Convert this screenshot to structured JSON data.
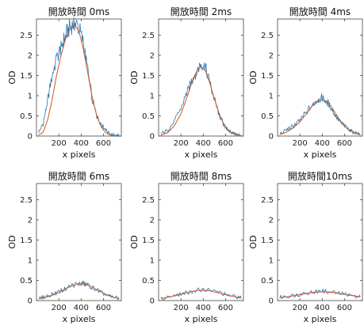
{
  "chart_data": [
    {
      "type": "line",
      "title": "開放時間 0ms",
      "xlabel": "x pixels",
      "ylabel": "OD",
      "xlim": [
        0,
        760
      ],
      "ylim": [
        0,
        2.9
      ],
      "xticks": [
        200,
        400,
        600
      ],
      "yticks": [
        0,
        0.5,
        1,
        1.5,
        2,
        2.5
      ],
      "series": [
        {
          "values": [
            [
              20,
              0.1
            ],
            [
              60,
              0.3
            ],
            [
              100,
              0.9
            ],
            [
              140,
              1.5
            ],
            [
              180,
              1.9
            ],
            [
              220,
              2.2
            ],
            [
              260,
              2.5
            ],
            [
              300,
              2.7
            ],
            [
              340,
              2.8
            ],
            [
              380,
              2.7
            ],
            [
              420,
              2.3
            ],
            [
              460,
              1.6
            ],
            [
              500,
              0.9
            ],
            [
              540,
              0.5
            ],
            [
              580,
              0.3
            ],
            [
              620,
              0.15
            ],
            [
              660,
              0.05
            ],
            [
              700,
              0.02
            ],
            [
              740,
              0.01
            ]
          ]
        },
        {
          "values": [
            [
              20,
              0.02
            ],
            [
              60,
              0.1
            ],
            [
              100,
              0.4
            ],
            [
              140,
              0.9
            ],
            [
              180,
              1.5
            ],
            [
              220,
              2.0
            ],
            [
              260,
              2.4
            ],
            [
              300,
              2.65
            ],
            [
              340,
              2.75
            ],
            [
              380,
              2.6
            ],
            [
              420,
              2.15
            ],
            [
              460,
              1.55
            ],
            [
              500,
              0.95
            ],
            [
              540,
              0.5
            ],
            [
              580,
              0.22
            ],
            [
              620,
              0.08
            ],
            [
              660,
              0.03
            ],
            [
              700,
              0.01
            ],
            [
              740,
              0.0
            ]
          ]
        }
      ]
    },
    {
      "type": "line",
      "title": "開放時間 2ms",
      "xlabel": "x pixels",
      "ylabel": "OD",
      "xlim": [
        0,
        760
      ],
      "ylim": [
        0,
        2.9
      ],
      "xticks": [
        200,
        400,
        600
      ],
      "yticks": [
        0,
        0.5,
        1,
        1.5,
        2,
        2.5
      ],
      "series": [
        {
          "values": [
            [
              20,
              0.05
            ],
            [
              80,
              0.15
            ],
            [
              140,
              0.35
            ],
            [
              200,
              0.7
            ],
            [
              260,
              1.1
            ],
            [
              300,
              1.4
            ],
            [
              340,
              1.6
            ],
            [
              380,
              1.8
            ],
            [
              420,
              1.7
            ],
            [
              460,
              1.3
            ],
            [
              500,
              0.9
            ],
            [
              540,
              0.55
            ],
            [
              580,
              0.3
            ],
            [
              620,
              0.15
            ],
            [
              660,
              0.08
            ],
            [
              700,
              0.04
            ],
            [
              740,
              0.02
            ]
          ]
        },
        {
          "values": [
            [
              20,
              0.02
            ],
            [
              80,
              0.08
            ],
            [
              140,
              0.25
            ],
            [
              200,
              0.55
            ],
            [
              260,
              1.0
            ],
            [
              300,
              1.35
            ],
            [
              340,
              1.6
            ],
            [
              380,
              1.72
            ],
            [
              420,
              1.62
            ],
            [
              460,
              1.3
            ],
            [
              500,
              0.92
            ],
            [
              540,
              0.58
            ],
            [
              580,
              0.32
            ],
            [
              620,
              0.16
            ],
            [
              660,
              0.07
            ],
            [
              700,
              0.03
            ],
            [
              740,
              0.01
            ]
          ]
        }
      ]
    },
    {
      "type": "line",
      "title": "開放時間 4ms",
      "xlabel": "x pixels",
      "ylabel": "OD",
      "xlim": [
        0,
        760
      ],
      "ylim": [
        0,
        2.9
      ],
      "xticks": [
        200,
        400,
        600
      ],
      "yticks": [
        0,
        0.5,
        1,
        1.5,
        2,
        2.5
      ],
      "series": [
        {
          "values": [
            [
              20,
              0.05
            ],
            [
              80,
              0.15
            ],
            [
              140,
              0.25
            ],
            [
              200,
              0.4
            ],
            [
              260,
              0.6
            ],
            [
              320,
              0.8
            ],
            [
              360,
              0.9
            ],
            [
              400,
              0.95
            ],
            [
              440,
              0.85
            ],
            [
              480,
              0.7
            ],
            [
              520,
              0.5
            ],
            [
              560,
              0.35
            ],
            [
              600,
              0.25
            ],
            [
              640,
              0.15
            ],
            [
              680,
              0.1
            ],
            [
              720,
              0.07
            ],
            [
              740,
              0.05
            ]
          ]
        },
        {
          "values": [
            [
              20,
              0.04
            ],
            [
              80,
              0.1
            ],
            [
              140,
              0.2
            ],
            [
              200,
              0.35
            ],
            [
              260,
              0.56
            ],
            [
              320,
              0.78
            ],
            [
              360,
              0.88
            ],
            [
              400,
              0.91
            ],
            [
              440,
              0.86
            ],
            [
              480,
              0.73
            ],
            [
              520,
              0.56
            ],
            [
              560,
              0.39
            ],
            [
              600,
              0.25
            ],
            [
              640,
              0.15
            ],
            [
              680,
              0.09
            ],
            [
              720,
              0.05
            ],
            [
              740,
              0.04
            ]
          ]
        }
      ]
    },
    {
      "type": "line",
      "title": "開放時間 6ms",
      "xlabel": "x pixels",
      "ylabel": "OD",
      "xlim": [
        0,
        760
      ],
      "ylim": [
        0,
        2.9
      ],
      "xticks": [
        200,
        400,
        600
      ],
      "yticks": [
        0,
        0.5,
        1,
        1.5,
        2,
        2.5
      ],
      "series": [
        {
          "values": [
            [
              20,
              0.05
            ],
            [
              80,
              0.1
            ],
            [
              140,
              0.15
            ],
            [
              200,
              0.22
            ],
            [
              260,
              0.3
            ],
            [
              320,
              0.38
            ],
            [
              380,
              0.42
            ],
            [
              420,
              0.42
            ],
            [
              460,
              0.38
            ],
            [
              520,
              0.3
            ],
            [
              580,
              0.2
            ],
            [
              640,
              0.12
            ],
            [
              700,
              0.08
            ],
            [
              740,
              0.05
            ]
          ]
        },
        {
          "values": [
            [
              20,
              0.04
            ],
            [
              80,
              0.08
            ],
            [
              140,
              0.13
            ],
            [
              200,
              0.2
            ],
            [
              260,
              0.29
            ],
            [
              320,
              0.37
            ],
            [
              380,
              0.41
            ],
            [
              420,
              0.41
            ],
            [
              460,
              0.38
            ],
            [
              520,
              0.3
            ],
            [
              580,
              0.21
            ],
            [
              640,
              0.13
            ],
            [
              700,
              0.07
            ],
            [
              740,
              0.05
            ]
          ]
        }
      ]
    },
    {
      "type": "line",
      "title": "開放時間 8ms",
      "xlabel": "x pixels",
      "ylabel": "OD",
      "xlim": [
        0,
        760
      ],
      "ylim": [
        0,
        2.9
      ],
      "xticks": [
        200,
        400,
        600
      ],
      "yticks": [
        0,
        0.5,
        1,
        1.5,
        2,
        2.5
      ],
      "series": [
        {
          "values": [
            [
              20,
              0.05
            ],
            [
              100,
              0.1
            ],
            [
              180,
              0.15
            ],
            [
              260,
              0.2
            ],
            [
              340,
              0.25
            ],
            [
              400,
              0.27
            ],
            [
              460,
              0.25
            ],
            [
              540,
              0.2
            ],
            [
              620,
              0.14
            ],
            [
              700,
              0.09
            ],
            [
              740,
              0.07
            ]
          ]
        },
        {
          "values": [
            [
              20,
              0.05
            ],
            [
              100,
              0.09
            ],
            [
              180,
              0.14
            ],
            [
              260,
              0.2
            ],
            [
              340,
              0.25
            ],
            [
              400,
              0.26
            ],
            [
              460,
              0.24
            ],
            [
              540,
              0.19
            ],
            [
              620,
              0.13
            ],
            [
              700,
              0.08
            ],
            [
              740,
              0.06
            ]
          ]
        }
      ]
    },
    {
      "type": "line",
      "title": "開放時間10ms",
      "xlabel": "x pixels",
      "ylabel": "OD",
      "xlim": [
        0,
        760
      ],
      "ylim": [
        0,
        2.9
      ],
      "xticks": [
        200,
        400,
        600
      ],
      "yticks": [
        0,
        0.5,
        1,
        1.5,
        2,
        2.5
      ],
      "series": [
        {
          "values": [
            [
              20,
              0.08
            ],
            [
              100,
              0.11
            ],
            [
              180,
              0.15
            ],
            [
              260,
              0.19
            ],
            [
              340,
              0.22
            ],
            [
              400,
              0.23
            ],
            [
              460,
              0.22
            ],
            [
              540,
              0.19
            ],
            [
              620,
              0.15
            ],
            [
              700,
              0.11
            ],
            [
              740,
              0.1
            ]
          ]
        },
        {
          "values": [
            [
              20,
              0.07
            ],
            [
              100,
              0.1
            ],
            [
              180,
              0.14
            ],
            [
              260,
              0.18
            ],
            [
              340,
              0.21
            ],
            [
              400,
              0.22
            ],
            [
              460,
              0.21
            ],
            [
              540,
              0.18
            ],
            [
              620,
              0.14
            ],
            [
              700,
              0.11
            ],
            [
              740,
              0.09
            ]
          ]
        }
      ]
    }
  ]
}
